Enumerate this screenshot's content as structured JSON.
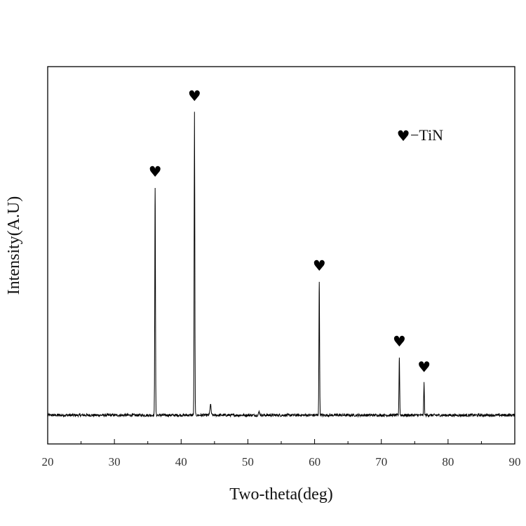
{
  "chart_data": {
    "type": "line",
    "title": "",
    "xlabel": "Two-theta(deg)",
    "ylabel": "Intensity(A.U)",
    "xlim": [
      20,
      90
    ],
    "ylim": [
      -0.1,
      1.1
    ],
    "xticks": [
      20,
      30,
      40,
      50,
      60,
      70,
      80,
      90
    ],
    "grid": false,
    "legend": {
      "position": "top-right",
      "symbol": "♥",
      "text": "−TiN"
    },
    "series": [
      {
        "name": "TiN",
        "color": "#000000",
        "baseline": 0,
        "peaks": [
          {
            "x": 36.1,
            "y": 0.75,
            "marker": "♥"
          },
          {
            "x": 42.0,
            "y": 1.0,
            "marker": "♥"
          },
          {
            "x": 44.4,
            "y": 0.035
          },
          {
            "x": 51.7,
            "y": 0.012
          },
          {
            "x": 60.7,
            "y": 0.44,
            "marker": "♥"
          },
          {
            "x": 72.7,
            "y": 0.19,
            "marker": "♥"
          },
          {
            "x": 76.4,
            "y": 0.105,
            "marker": "♥"
          }
        ]
      }
    ]
  }
}
